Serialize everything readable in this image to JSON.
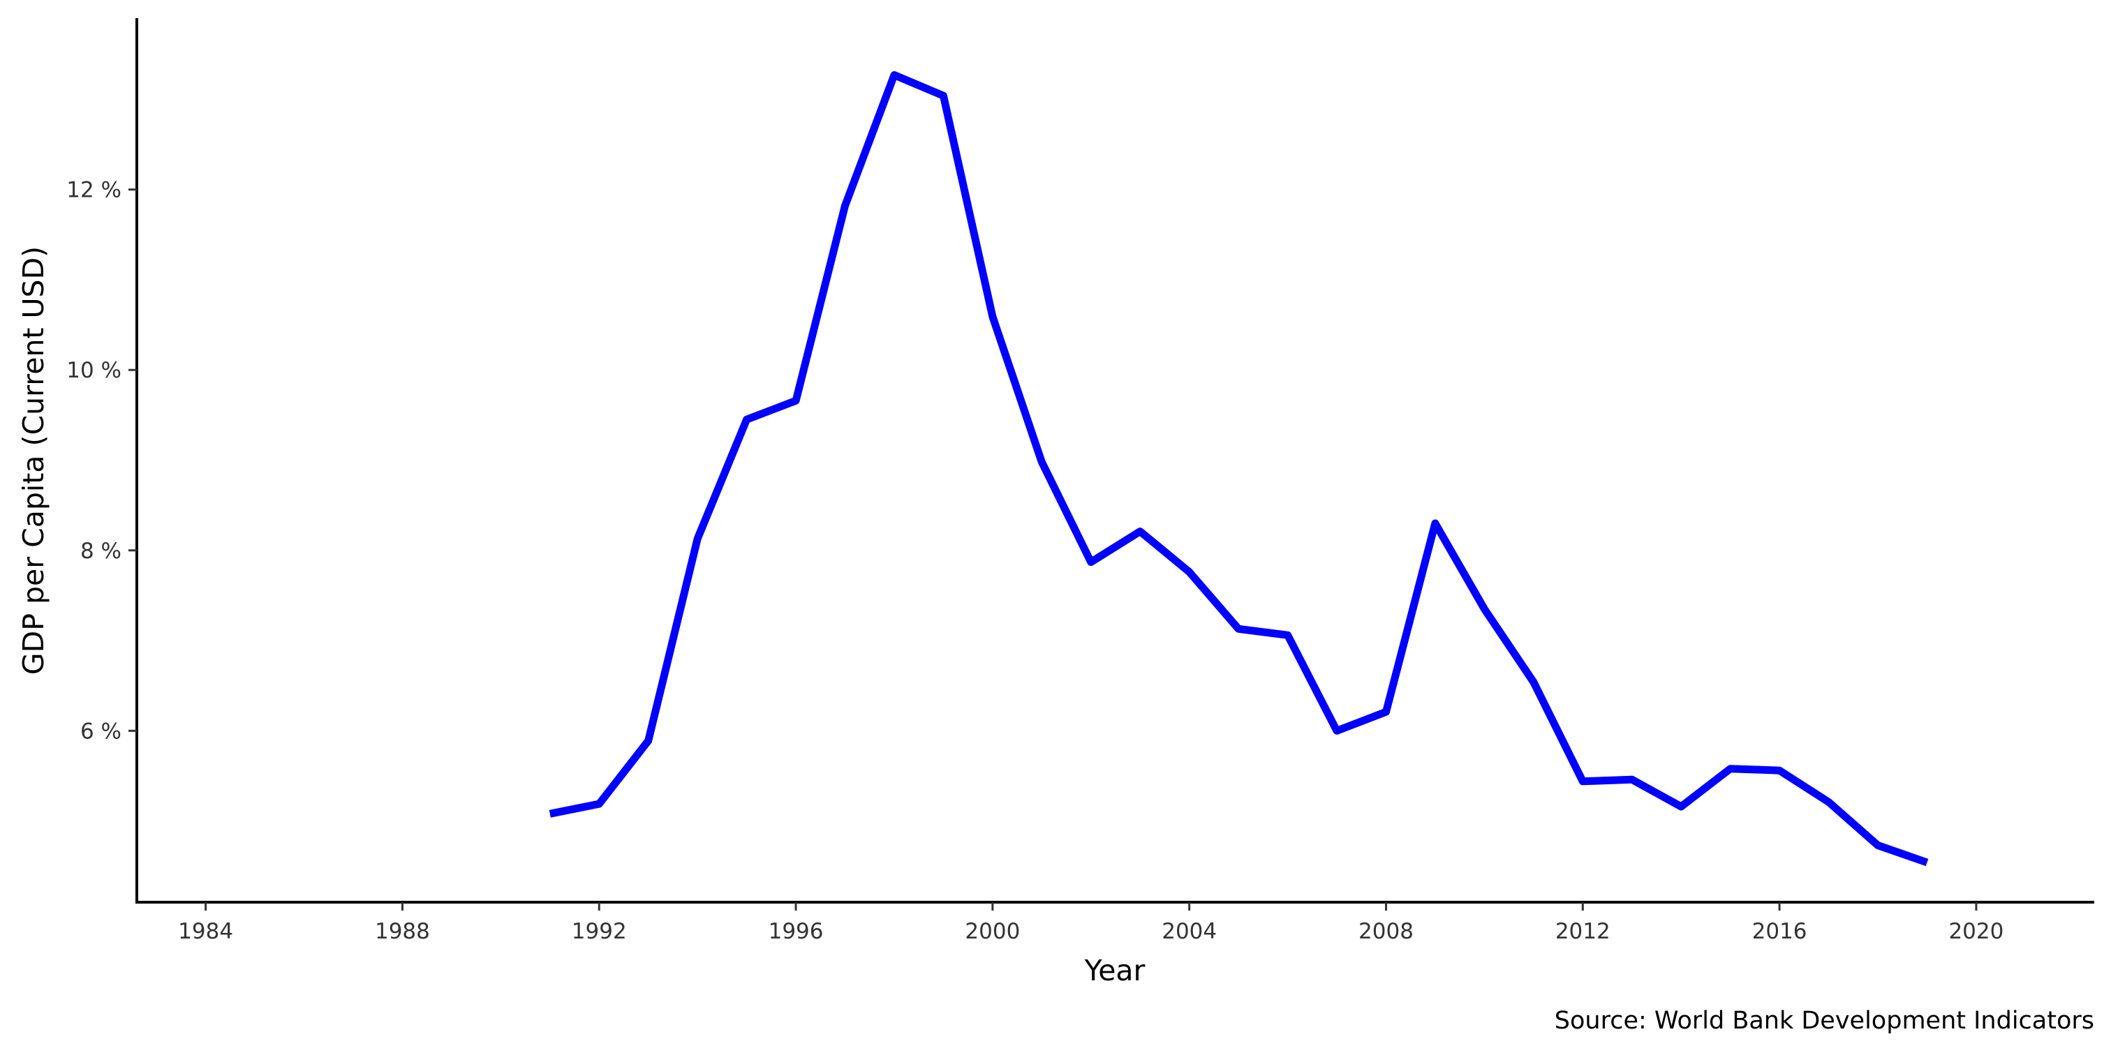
{
  "chart_data": {
    "type": "line",
    "xlabel": "Year",
    "ylabel": "GDP per Capita (Current USD)",
    "caption": "Source: World Bank Development Indicators",
    "xlim": [
      1982.6,
      2022.4
    ],
    "ylim": [
      4.1,
      13.9
    ],
    "grid": false,
    "legend": "none",
    "x_ticks": [
      1984,
      1988,
      1992,
      1996,
      2000,
      2004,
      2008,
      2012,
      2016,
      2020
    ],
    "x_tick_labels": [
      "1984",
      "1988",
      "1992",
      "1996",
      "2000",
      "2004",
      "2008",
      "2012",
      "2016",
      "2020"
    ],
    "y_ticks": [
      6,
      8,
      10,
      12
    ],
    "y_tick_labels": [
      "6 %",
      "8 %",
      "10 %",
      "12 %"
    ],
    "colors": {
      "line": "#0000ff"
    },
    "series": [
      {
        "x": [
          1991,
          1992,
          1993,
          1994,
          1995,
          1996,
          1997,
          1998,
          1999,
          2000,
          2001,
          2002,
          2003,
          2004,
          2005,
          2006,
          2007,
          2008,
          2009,
          2010,
          2011,
          2012,
          2013,
          2014,
          2015,
          2016,
          2017,
          2018,
          2019
        ],
        "values": [
          5.08,
          5.19,
          5.89,
          8.13,
          9.45,
          9.66,
          11.82,
          13.27,
          13.04,
          10.59,
          8.98,
          7.87,
          8.21,
          7.76,
          7.13,
          7.06,
          6.0,
          6.21,
          8.3,
          7.35,
          6.54,
          5.44,
          5.46,
          5.16,
          5.58,
          5.56,
          5.21,
          4.73,
          4.54
        ]
      }
    ]
  }
}
